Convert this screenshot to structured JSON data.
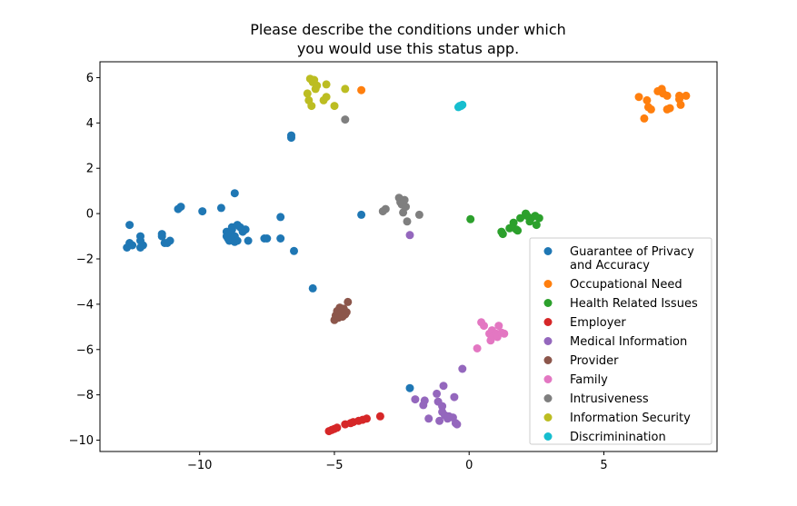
{
  "chart_data": {
    "type": "scatter",
    "title_lines": [
      "Please describe the conditions under which",
      "you would use this status app."
    ],
    "xlabel": "",
    "ylabel": "",
    "xlim": [
      -13.7,
      9.2
    ],
    "ylim": [
      -10.5,
      6.7
    ],
    "xticks": [
      -10,
      -5,
      0,
      5
    ],
    "yticks": [
      -10,
      -8,
      -6,
      -4,
      -2,
      0,
      2,
      4,
      6
    ],
    "xtick_labels": [
      "−10",
      "−5",
      "0",
      "5"
    ],
    "ytick_labels": [
      "−10",
      "−8",
      "−6",
      "−4",
      "−2",
      "0",
      "2",
      "4",
      "6"
    ],
    "legend_position": "lower-right",
    "series": [
      {
        "name": "Guarantee of Privacy\nand Accuracy",
        "color": "#1f77b4",
        "points": [
          [
            -12.7,
            -1.5
          ],
          [
            -12.6,
            -1.3
          ],
          [
            -12.5,
            -1.4
          ],
          [
            -12.6,
            -0.5
          ],
          [
            -12.2,
            -1.0
          ],
          [
            -12.2,
            -1.2
          ],
          [
            -12.1,
            -1.4
          ],
          [
            -12.2,
            -1.5
          ],
          [
            -11.4,
            -0.9
          ],
          [
            -11.4,
            -1.0
          ],
          [
            -11.3,
            -1.3
          ],
          [
            -11.2,
            -1.3
          ],
          [
            -11.1,
            -1.2
          ],
          [
            -10.8,
            0.2
          ],
          [
            -10.7,
            0.3
          ],
          [
            -9.9,
            0.1
          ],
          [
            -9.2,
            0.25
          ],
          [
            -9.0,
            -0.8
          ],
          [
            -9.0,
            -1.0
          ],
          [
            -8.95,
            -1.1
          ],
          [
            -8.9,
            -0.9
          ],
          [
            -8.9,
            -1.2
          ],
          [
            -8.8,
            -0.7
          ],
          [
            -8.8,
            -0.6
          ],
          [
            -8.7,
            -1.0
          ],
          [
            -8.7,
            -1.25
          ],
          [
            -8.6,
            -0.5
          ],
          [
            -8.6,
            -1.2
          ],
          [
            -8.5,
            -0.6
          ],
          [
            -8.4,
            -0.8
          ],
          [
            -8.3,
            -0.7
          ],
          [
            -8.7,
            0.9
          ],
          [
            -8.2,
            -1.2
          ],
          [
            -7.6,
            -1.1
          ],
          [
            -7.5,
            -1.1
          ],
          [
            -7.0,
            -0.15
          ],
          [
            -7.0,
            -1.1
          ],
          [
            -6.6,
            3.35
          ],
          [
            -6.6,
            3.45
          ],
          [
            -6.5,
            -1.65
          ],
          [
            -5.8,
            -3.3
          ],
          [
            -4.0,
            -0.05
          ],
          [
            -2.2,
            -7.7
          ]
        ]
      },
      {
        "name": "Occupational Need",
        "color": "#ff7f0e",
        "points": [
          [
            -4.0,
            5.45
          ],
          [
            6.3,
            5.15
          ],
          [
            6.6,
            5.0
          ],
          [
            6.65,
            4.7
          ],
          [
            6.75,
            4.6
          ],
          [
            6.5,
            4.2
          ],
          [
            7.0,
            5.4
          ],
          [
            7.15,
            5.5
          ],
          [
            7.2,
            5.3
          ],
          [
            7.35,
            5.2
          ],
          [
            7.35,
            4.6
          ],
          [
            7.45,
            4.65
          ],
          [
            7.8,
            5.2
          ],
          [
            7.8,
            5.05
          ],
          [
            7.85,
            4.8
          ],
          [
            8.05,
            5.2
          ]
        ]
      },
      {
        "name": "Health Related Issues",
        "color": "#2ca02c",
        "points": [
          [
            0.05,
            -0.25
          ],
          [
            1.2,
            -0.8
          ],
          [
            1.25,
            -0.9
          ],
          [
            1.5,
            -0.65
          ],
          [
            1.65,
            -0.4
          ],
          [
            1.75,
            -0.7
          ],
          [
            1.8,
            -0.75
          ],
          [
            1.9,
            -0.2
          ],
          [
            2.1,
            0.0
          ],
          [
            2.15,
            -0.1
          ],
          [
            2.25,
            -0.35
          ],
          [
            2.3,
            -0.2
          ],
          [
            2.45,
            -0.1
          ],
          [
            2.5,
            -0.5
          ],
          [
            2.6,
            -0.2
          ]
        ]
      },
      {
        "name": "Employer",
        "color": "#d62728",
        "points": [
          [
            -5.2,
            -9.6
          ],
          [
            -5.1,
            -9.55
          ],
          [
            -5.0,
            -9.5
          ],
          [
            -4.9,
            -9.45
          ],
          [
            -4.6,
            -9.3
          ],
          [
            -4.4,
            -9.25
          ],
          [
            -4.3,
            -9.2
          ],
          [
            -4.1,
            -9.15
          ],
          [
            -3.95,
            -9.1
          ],
          [
            -3.8,
            -9.05
          ],
          [
            -3.3,
            -8.95
          ]
        ]
      },
      {
        "name": "Medical Information",
        "color": "#9467bd",
        "points": [
          [
            -2.2,
            -0.95
          ],
          [
            -2.0,
            -8.2
          ],
          [
            -1.7,
            -8.45
          ],
          [
            -1.65,
            -8.25
          ],
          [
            -1.5,
            -9.05
          ],
          [
            -1.2,
            -7.95
          ],
          [
            -1.15,
            -8.3
          ],
          [
            -1.1,
            -9.15
          ],
          [
            -1.0,
            -8.5
          ],
          [
            -1.0,
            -8.75
          ],
          [
            -0.95,
            -7.6
          ],
          [
            -0.9,
            -8.9
          ],
          [
            -0.8,
            -9.05
          ],
          [
            -0.75,
            -8.95
          ],
          [
            -0.6,
            -9.0
          ],
          [
            -0.55,
            -8.1
          ],
          [
            -0.5,
            -9.25
          ],
          [
            -0.45,
            -9.3
          ],
          [
            -0.25,
            -6.85
          ]
        ]
      },
      {
        "name": "Provider",
        "color": "#8c564b",
        "points": [
          [
            -5.0,
            -4.7
          ],
          [
            -4.95,
            -4.5
          ],
          [
            -4.9,
            -4.3
          ],
          [
            -4.85,
            -4.6
          ],
          [
            -4.8,
            -4.15
          ],
          [
            -4.75,
            -4.4
          ],
          [
            -4.7,
            -4.55
          ],
          [
            -4.65,
            -4.2
          ],
          [
            -4.6,
            -4.45
          ],
          [
            -4.55,
            -4.35
          ],
          [
            -4.5,
            -3.9
          ]
        ]
      },
      {
        "name": "Family",
        "color": "#e377c2",
        "points": [
          [
            0.3,
            -5.95
          ],
          [
            0.45,
            -4.8
          ],
          [
            0.55,
            -4.95
          ],
          [
            0.75,
            -5.3
          ],
          [
            0.8,
            -5.6
          ],
          [
            0.85,
            -5.15
          ],
          [
            0.9,
            -5.4
          ],
          [
            1.0,
            -5.3
          ],
          [
            1.05,
            -5.45
          ],
          [
            1.1,
            -4.95
          ],
          [
            1.2,
            -5.25
          ],
          [
            1.3,
            -5.3
          ]
        ]
      },
      {
        "name": "Intrusiveness",
        "color": "#7f7f7f",
        "points": [
          [
            -4.6,
            4.15
          ],
          [
            -3.2,
            0.1
          ],
          [
            -3.1,
            0.2
          ],
          [
            -2.6,
            0.7
          ],
          [
            -2.55,
            0.5
          ],
          [
            -2.5,
            0.4
          ],
          [
            -2.45,
            0.05
          ],
          [
            -2.4,
            0.6
          ],
          [
            -2.35,
            0.3
          ],
          [
            -2.3,
            -0.35
          ],
          [
            -1.85,
            -0.05
          ]
        ]
      },
      {
        "name": "Information Security",
        "color": "#bcbd22",
        "points": [
          [
            -6.0,
            5.3
          ],
          [
            -5.95,
            5.0
          ],
          [
            -5.9,
            5.95
          ],
          [
            -5.85,
            4.75
          ],
          [
            -5.8,
            5.8
          ],
          [
            -5.75,
            5.9
          ],
          [
            -5.7,
            5.5
          ],
          [
            -5.65,
            5.65
          ],
          [
            -5.4,
            5.0
          ],
          [
            -5.3,
            5.7
          ],
          [
            -5.3,
            5.15
          ],
          [
            -5.0,
            4.75
          ],
          [
            -4.6,
            5.5
          ]
        ]
      },
      {
        "name": "Discriminination",
        "color": "#17becf",
        "points": [
          [
            -0.4,
            4.7
          ],
          [
            -0.35,
            4.75
          ],
          [
            -0.3,
            4.75
          ],
          [
            -0.25,
            4.8
          ]
        ]
      }
    ]
  }
}
